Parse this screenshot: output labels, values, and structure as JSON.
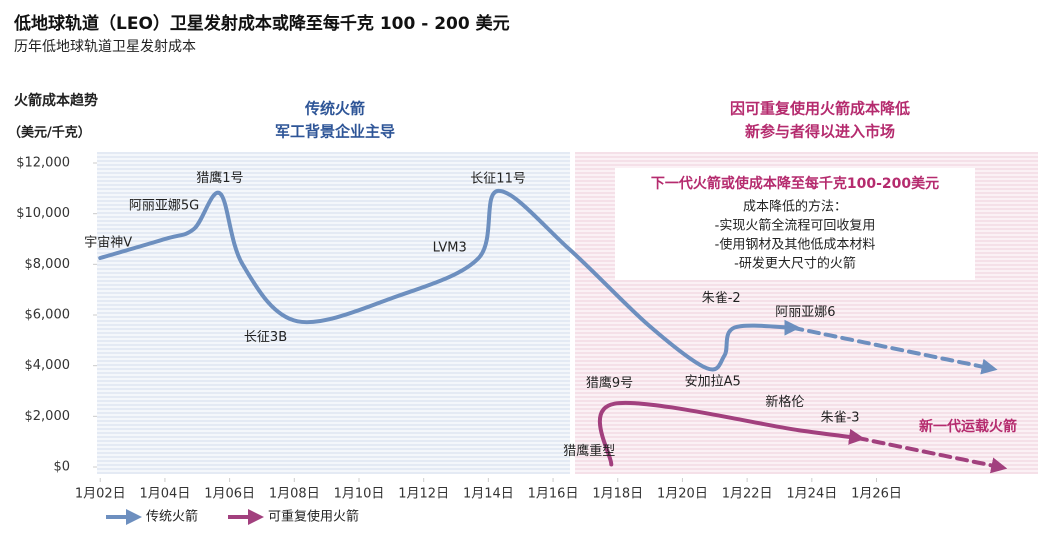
{
  "chart_data": {
    "type": "line",
    "title": "低地球轨道（LEO）卫星发射成本或降至每千克 100 - 200 美元",
    "subtitle": "历年低地球轨道卫星发射成本",
    "y_title": "火箭成本趋势",
    "y_unit": "（美元/千克）",
    "regions": [
      {
        "lines": [
          "传统火箭",
          "军工背景企业主导"
        ],
        "color": "#2e5597"
      },
      {
        "lines": [
          "因可重复使用火箭成本降低",
          "新参与者得以进入市场"
        ],
        "color": "#b52b6e"
      }
    ],
    "box": {
      "title": "下一代火箭或使成本降至每千克100-200美元",
      "lines": [
        "成本降低的方法：",
        "-实现火箭全流程可回收复用",
        "-使用钢材及其他低成本材料",
        "-研发更大尺寸的火箭"
      ]
    },
    "annotation": "新一代运载火箭",
    "xlim": [
      1.9,
      30.9
    ],
    "xticks": [
      {
        "value": 2,
        "label": "1月02日"
      },
      {
        "value": 4,
        "label": "1月04日"
      },
      {
        "value": 6,
        "label": "1月06日"
      },
      {
        "value": 8,
        "label": "1月08日"
      },
      {
        "value": 10,
        "label": "1月10日"
      },
      {
        "value": 12,
        "label": "1月12日"
      },
      {
        "value": 14,
        "label": "1月14日"
      },
      {
        "value": 16,
        "label": "1月16日"
      },
      {
        "value": 18,
        "label": "1月18日"
      },
      {
        "value": 20,
        "label": "1月20日"
      },
      {
        "value": 22,
        "label": "1月22日"
      },
      {
        "value": 24,
        "label": "1月24日"
      },
      {
        "value": 26,
        "label": "1月26日"
      }
    ],
    "ylim": [
      0,
      12000
    ],
    "yticks": [
      {
        "value": 0,
        "label": "$0"
      },
      {
        "value": 2000,
        "label": "$2,000"
      },
      {
        "value": 4000,
        "label": "$4,000"
      },
      {
        "value": 6000,
        "label": "$6,000"
      },
      {
        "value": 8000,
        "label": "$8,000"
      },
      {
        "value": 10000,
        "label": "$10,000"
      },
      {
        "value": 12000,
        "label": "$12,000"
      }
    ],
    "series": [
      {
        "name": "传统火箭",
        "color": "#6d8fbf",
        "dashed_from": 14,
        "x": [
          2,
          4,
          4.9,
          5.7,
          6.4,
          8.1,
          11.2,
          13.7,
          14.3,
          16.5,
          18.95,
          20.75,
          21.3,
          21.6,
          23.4,
          29.5
        ],
        "values": [
          8250,
          9000,
          9400,
          10800,
          8000,
          5750,
          6750,
          8250,
          10900,
          8600,
          5600,
          3900,
          4400,
          5500,
          5500,
          3900
        ],
        "point_labels": [
          "宇宙神V",
          null,
          "阿丽亚娜5G",
          "猎鹰1号",
          null,
          "长征3B",
          null,
          "LVM3",
          "长征11号",
          null,
          null,
          "安加拉A5",
          null,
          "朱雀-2",
          "阿丽亚娜6",
          null
        ]
      },
      {
        "name": "可重复使用火箭",
        "color": "#a2407e",
        "dashed_from": 3,
        "x": [
          17.8,
          17.9,
          23.6,
          25.4,
          29.8
        ],
        "values": [
          100,
          2500,
          1450,
          1150,
          0
        ],
        "point_labels": [
          "猎鹰重型",
          "猎鹰9号",
          "新格伦",
          "朱雀-3",
          null
        ]
      }
    ]
  }
}
